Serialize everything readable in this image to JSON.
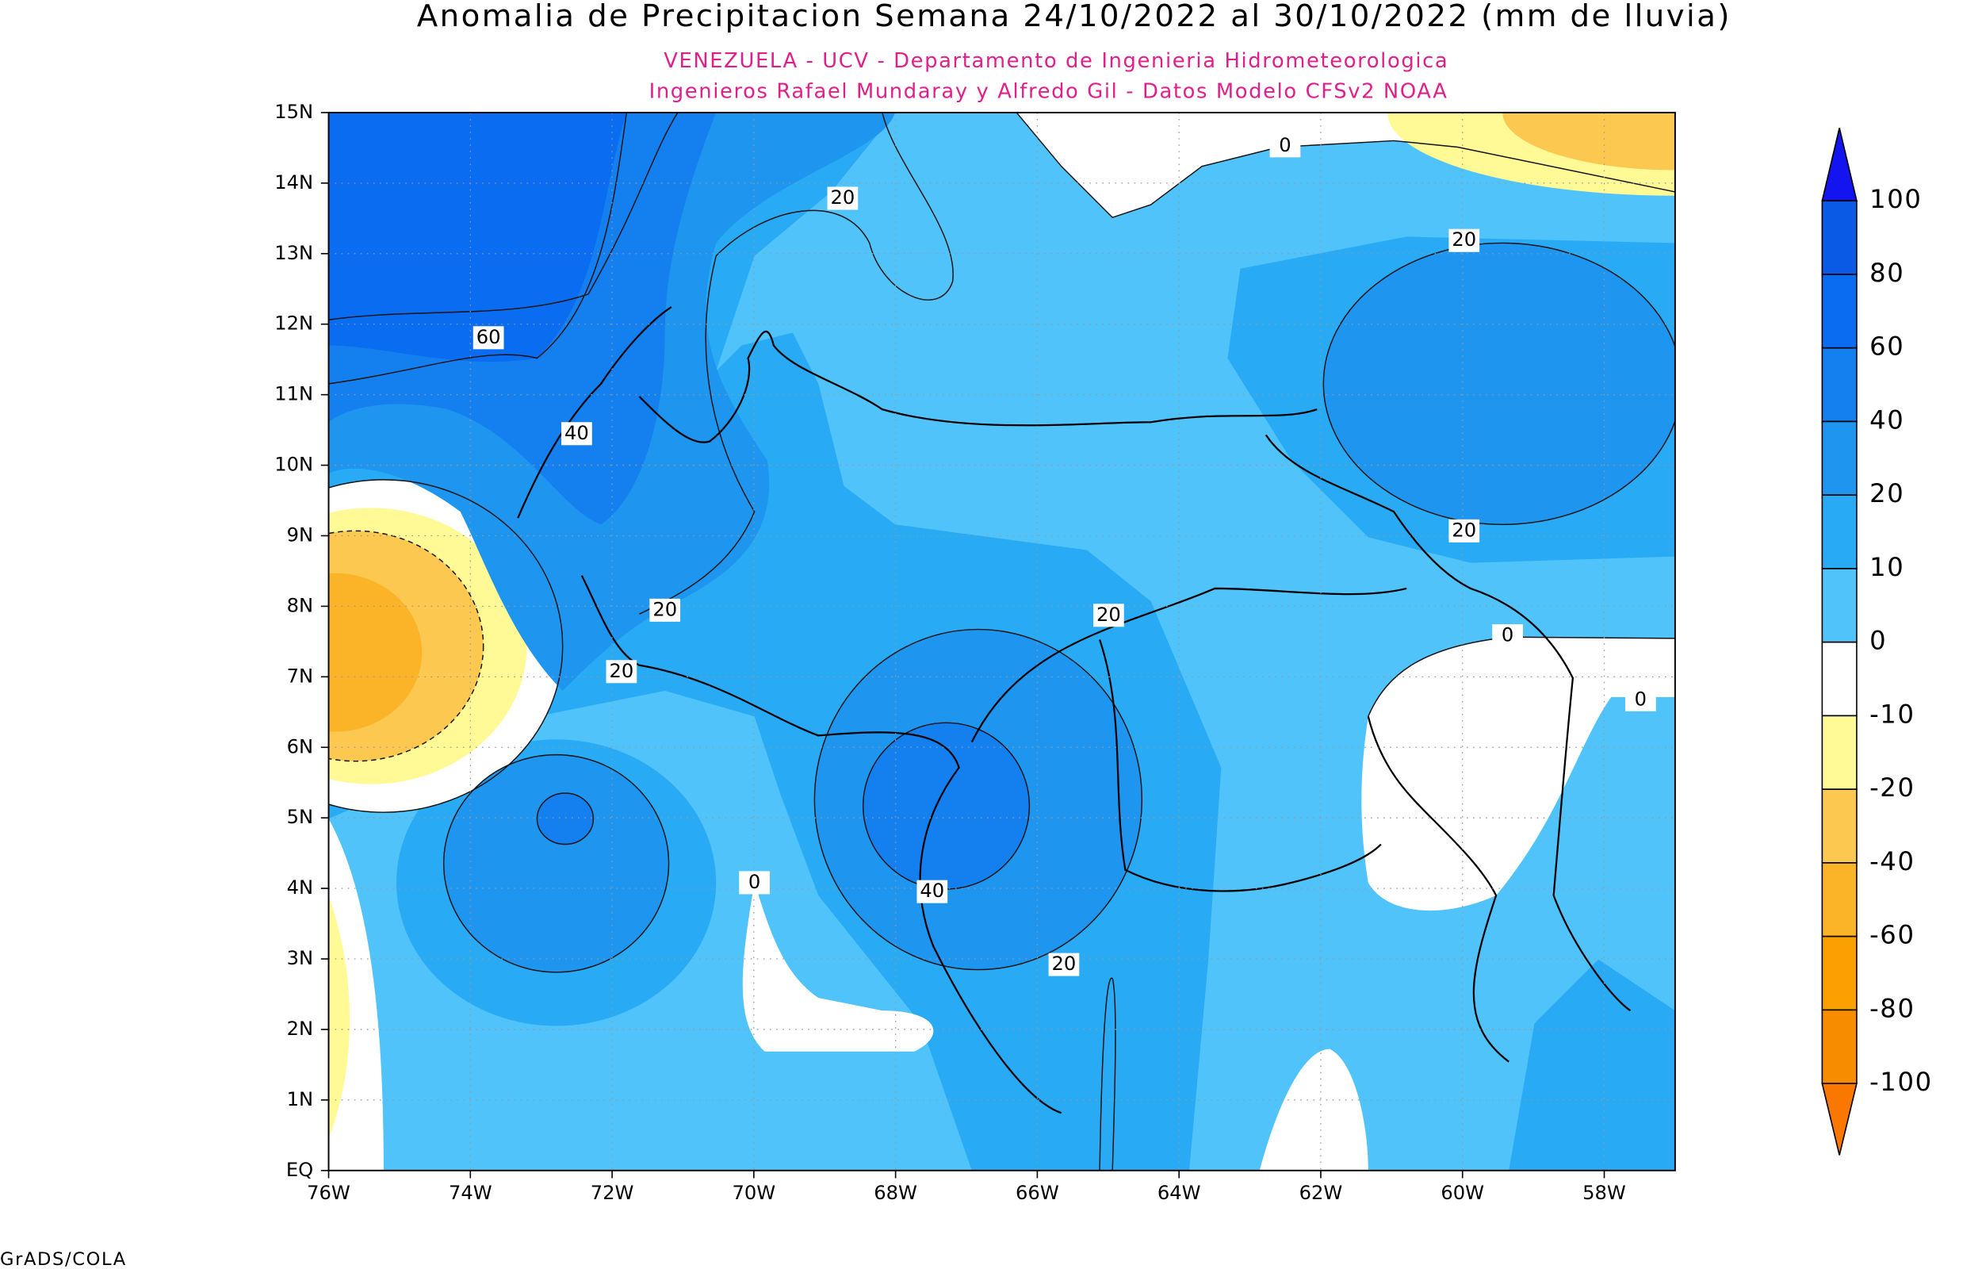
{
  "title": "Anomalia de Precipitacion Semana 24/10/2022 al 30/10/2022 (mm de lluvia)",
  "subtitles": [
    "VENEZUELA - UCV - Departamento de Ingenieria Hidrometeorologica",
    "Ingenieros Rafael Mundaray y Alfredo Gil - Datos Modelo CFSv2 NOAA"
  ],
  "lat_labels": [
    "15N",
    "14N",
    "13N",
    "12N",
    "11N",
    "10N",
    "9N",
    "8N",
    "7N",
    "6N",
    "5N",
    "4N",
    "3N",
    "2N",
    "1N",
    "EQ"
  ],
  "lon_labels": [
    "76W",
    "74W",
    "72W",
    "70W",
    "68W",
    "66W",
    "64W",
    "62W",
    "60W",
    "58W"
  ],
  "colorbar": {
    "levels": [
      100,
      80,
      60,
      40,
      20,
      10,
      0,
      -10,
      -20,
      -40,
      -60,
      -80,
      -100
    ],
    "colors": [
      "#1414f0",
      "#0a5ae6",
      "#0a6cf0",
      "#1480f0",
      "#1e96f0",
      "#28aaf5",
      "#50c3fa",
      "#ffffff",
      "#fffa96",
      "#fcc850",
      "#fbb428",
      "#faa000",
      "#f88c00",
      "#fa7800"
    ]
  },
  "contour_labels": [
    0,
    20,
    20,
    60,
    40,
    20,
    20,
    20,
    20,
    0,
    0,
    0,
    40,
    20
  ],
  "footer": "GrADS/COLA"
}
